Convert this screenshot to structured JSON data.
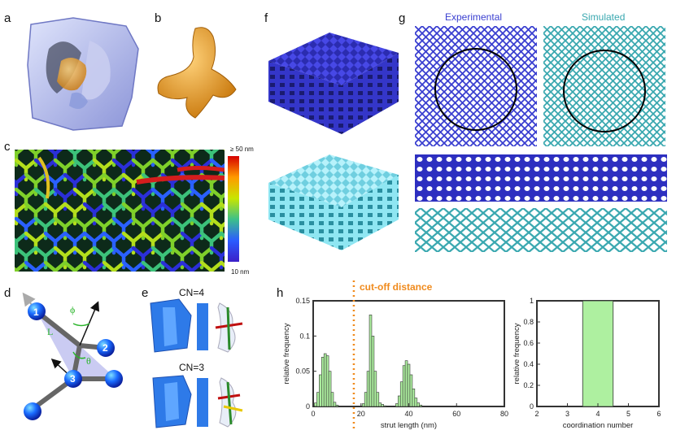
{
  "panels": {
    "a": "a",
    "b": "b",
    "c": "c",
    "d": "d",
    "e": "e",
    "f": "f",
    "g": "g",
    "h": "h"
  },
  "panel_c": {
    "colorbar_max": "≥ 50 nm",
    "colorbar_min": "10 nm"
  },
  "panel_d": {
    "node_labels": [
      "1",
      "2",
      "3"
    ],
    "length_label": "L",
    "phi_label": "ϕ",
    "theta_label": "θ"
  },
  "panel_e": {
    "cn4_label": "CN=4",
    "cn3_label": "CN=3"
  },
  "panel_g": {
    "experimental_label": "Experimental",
    "simulated_label": "Simulated",
    "experimental_color": "#3a3fd0",
    "simulated_color": "#3aa8b0"
  },
  "panel_h": {
    "cutoff_label": "cut-off distance",
    "cutoff_color": "#f08a1c",
    "bar_color": "#aef0a0"
  },
  "chart_data": [
    {
      "type": "bar",
      "title": "",
      "xlabel": "strut length (nm)",
      "ylabel": "relative frequency",
      "xlim": [
        0,
        80
      ],
      "ylim": [
        0,
        0.15
      ],
      "xticks": [
        "0",
        "20",
        "40",
        "60",
        "80"
      ],
      "yticks": [
        "0",
        "0.05",
        "0.1",
        "0.15"
      ],
      "cutoff_x": 17,
      "bin_width": 1,
      "x": [
        1,
        2,
        3,
        4,
        5,
        6,
        7,
        8,
        9,
        10,
        21,
        22,
        23,
        24,
        25,
        26,
        27,
        28,
        29,
        30,
        35,
        36,
        37,
        38,
        39,
        40,
        41,
        42,
        43,
        44,
        45
      ],
      "values": [
        0.005,
        0.02,
        0.045,
        0.07,
        0.075,
        0.072,
        0.05,
        0.02,
        0.006,
        0.002,
        0.004,
        0.02,
        0.05,
        0.13,
        0.1,
        0.05,
        0.02,
        0.005,
        0.003,
        0.001,
        0.004,
        0.015,
        0.035,
        0.058,
        0.065,
        0.06,
        0.045,
        0.025,
        0.012,
        0.005,
        0.002
      ]
    },
    {
      "type": "bar",
      "title": "",
      "xlabel": "coordination number",
      "ylabel": "relative frequency",
      "xlim": [
        2,
        6
      ],
      "ylim": [
        0,
        1
      ],
      "xticks": [
        "2",
        "3",
        "4",
        "5",
        "6"
      ],
      "yticks": [
        "0",
        "0.2",
        "0.4",
        "0.6",
        "0.8",
        "1"
      ],
      "categories": [
        "4"
      ],
      "x": [
        4
      ],
      "bin_width": 1,
      "values": [
        1.0
      ]
    }
  ]
}
